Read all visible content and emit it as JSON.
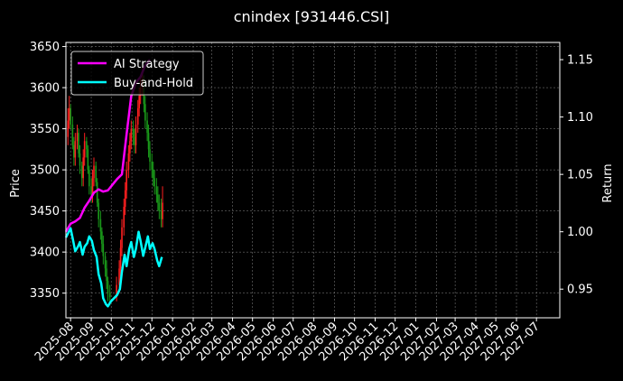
{
  "chart_data": {
    "type": "line",
    "title": "cnindex [931446.CSI]",
    "xlabel": "",
    "ylabel": "Price",
    "y2label": "Return",
    "ylim": [
      3320,
      3655
    ],
    "y2lim": [
      0.925,
      1.165
    ],
    "xlim": [
      "2025-07-25",
      "2027-08-05"
    ],
    "yticks": [
      3350,
      3400,
      3450,
      3500,
      3550,
      3600,
      3650
    ],
    "y2ticks": [
      "0.95",
      "1.00",
      "1.05",
      "1.10",
      "1.15"
    ],
    "xticks": [
      "2025-08",
      "2025-09",
      "2025-10",
      "2025-11",
      "2025-12",
      "2026-01",
      "2026-02",
      "2026-03",
      "2026-04",
      "2026-05",
      "2026-06",
      "2026-07",
      "2026-08",
      "2026-09",
      "2026-10",
      "2026-11",
      "2026-12",
      "2027-01",
      "2027-02",
      "2027-03",
      "2027-04",
      "2027-05",
      "2027-06",
      "2027-07"
    ],
    "grid": true,
    "legend_position": "top-left",
    "candles": {
      "up_color": "#ff2020",
      "down_color": "#1a9a1a",
      "dates": [
        "2025-07-28",
        "2025-07-30",
        "2025-08-01",
        "2025-08-04",
        "2025-08-06",
        "2025-08-08",
        "2025-08-11",
        "2025-08-13",
        "2025-08-15",
        "2025-08-18",
        "2025-08-20",
        "2025-08-22",
        "2025-08-25",
        "2025-08-27",
        "2025-08-29",
        "2025-09-01",
        "2025-09-03",
        "2025-09-05",
        "2025-09-08",
        "2025-09-10",
        "2025-09-12",
        "2025-09-15",
        "2025-09-17",
        "2025-09-19",
        "2025-09-22",
        "2025-09-24",
        "2025-09-26",
        "2025-09-29",
        "2025-10-09",
        "2025-10-13",
        "2025-10-15",
        "2025-10-17",
        "2025-10-20",
        "2025-10-22",
        "2025-10-24",
        "2025-10-27",
        "2025-10-29",
        "2025-10-31",
        "2025-11-03",
        "2025-11-05",
        "2025-11-07",
        "2025-11-10",
        "2025-11-12",
        "2025-11-14",
        "2025-11-17",
        "2025-11-19",
        "2025-11-21",
        "2025-11-24",
        "2025-11-26",
        "2025-11-28",
        "2025-12-01",
        "2025-12-03",
        "2025-12-05",
        "2025-12-08",
        "2025-12-10",
        "2025-12-12",
        "2025-12-15",
        "2025-12-17"
      ],
      "open": [
        3540,
        3560,
        3575,
        3555,
        3530,
        3515,
        3535,
        3545,
        3520,
        3505,
        3490,
        3515,
        3535,
        3525,
        3500,
        3480,
        3470,
        3490,
        3505,
        3485,
        3460,
        3440,
        3425,
        3410,
        3395,
        3380,
        3365,
        3350,
        3345,
        3360,
        3380,
        3405,
        3430,
        3455,
        3475,
        3500,
        3520,
        3535,
        3550,
        3540,
        3530,
        3555,
        3575,
        3590,
        3600,
        3610,
        3580,
        3560,
        3545,
        3525,
        3510,
        3500,
        3490,
        3480,
        3470,
        3460,
        3450,
        3440
      ],
      "close": [
        3560,
        3575,
        3555,
        3530,
        3515,
        3535,
        3545,
        3520,
        3505,
        3490,
        3515,
        3535,
        3525,
        3500,
        3480,
        3470,
        3490,
        3505,
        3485,
        3460,
        3440,
        3425,
        3410,
        3395,
        3380,
        3365,
        3350,
        3345,
        3360,
        3380,
        3405,
        3430,
        3455,
        3475,
        3500,
        3520,
        3535,
        3550,
        3540,
        3530,
        3555,
        3575,
        3590,
        3600,
        3610,
        3580,
        3560,
        3545,
        3525,
        3510,
        3500,
        3490,
        3480,
        3470,
        3460,
        3450,
        3440,
        3460
      ],
      "high": [
        3575,
        3590,
        3580,
        3565,
        3540,
        3545,
        3555,
        3550,
        3530,
        3510,
        3525,
        3545,
        3540,
        3530,
        3505,
        3490,
        3500,
        3515,
        3510,
        3490,
        3465,
        3450,
        3430,
        3420,
        3400,
        3390,
        3370,
        3360,
        3370,
        3390,
        3415,
        3440,
        3465,
        3485,
        3510,
        3530,
        3545,
        3560,
        3560,
        3550,
        3565,
        3585,
        3600,
        3615,
        3625,
        3615,
        3590,
        3570,
        3555,
        3535,
        3520,
        3510,
        3500,
        3490,
        3480,
        3470,
        3465,
        3480
      ],
      "low": [
        3530,
        3550,
        3550,
        3525,
        3505,
        3505,
        3525,
        3515,
        3495,
        3480,
        3480,
        3505,
        3515,
        3495,
        3470,
        3460,
        3460,
        3480,
        3480,
        3455,
        3430,
        3415,
        3400,
        3385,
        3370,
        3355,
        3340,
        3335,
        3340,
        3350,
        3370,
        3395,
        3420,
        3445,
        3465,
        3490,
        3510,
        3525,
        3530,
        3520,
        3520,
        3545,
        3565,
        3580,
        3590,
        3570,
        3550,
        3535,
        3515,
        3500,
        3490,
        3480,
        3470,
        3460,
        3450,
        3440,
        3430,
        3430
      ]
    },
    "series": [
      {
        "name": "AI Strategy",
        "color": "#ff00ff",
        "axis": "right",
        "x": [
          "2025-07-25",
          "2025-08-01",
          "2025-08-08",
          "2025-08-15",
          "2025-08-22",
          "2025-08-29",
          "2025-09-05",
          "2025-09-12",
          "2025-09-19",
          "2025-09-26",
          "2025-10-10",
          "2025-10-17",
          "2025-10-24",
          "2025-10-31",
          "2025-11-07",
          "2025-11-14",
          "2025-11-21",
          "2025-11-28"
        ],
        "values": [
          1.0,
          1.007,
          1.009,
          1.012,
          1.021,
          1.027,
          1.034,
          1.037,
          1.035,
          1.036,
          1.046,
          1.05,
          1.085,
          1.118,
          1.13,
          1.135,
          1.145,
          1.15
        ]
      },
      {
        "name": "Buy-and-Hold",
        "color": "#00ffff",
        "axis": "right",
        "x": [
          "2025-07-25",
          "2025-08-01",
          "2025-08-05",
          "2025-08-08",
          "2025-08-12",
          "2025-08-15",
          "2025-08-19",
          "2025-08-22",
          "2025-08-26",
          "2025-08-29",
          "2025-09-02",
          "2025-09-05",
          "2025-09-09",
          "2025-09-12",
          "2025-09-16",
          "2025-09-19",
          "2025-09-23",
          "2025-09-26",
          "2025-09-30",
          "2025-10-10",
          "2025-10-14",
          "2025-10-17",
          "2025-10-21",
          "2025-10-24",
          "2025-10-28",
          "2025-10-31",
          "2025-11-04",
          "2025-11-07",
          "2025-11-11",
          "2025-11-14",
          "2025-11-18",
          "2025-11-21",
          "2025-11-25",
          "2025-11-28",
          "2025-12-02",
          "2025-12-05",
          "2025-12-09",
          "2025-12-12",
          "2025-12-16"
        ],
        "values": [
          0.995,
          1.003,
          0.992,
          0.983,
          0.987,
          0.991,
          0.98,
          0.987,
          0.99,
          0.996,
          0.992,
          0.984,
          0.978,
          0.963,
          0.955,
          0.942,
          0.937,
          0.935,
          0.939,
          0.945,
          0.95,
          0.965,
          0.98,
          0.97,
          0.985,
          0.991,
          0.978,
          0.985,
          1.0,
          0.992,
          0.979,
          0.986,
          0.996,
          0.985,
          0.99,
          0.985,
          0.975,
          0.97,
          0.978
        ]
      }
    ]
  }
}
